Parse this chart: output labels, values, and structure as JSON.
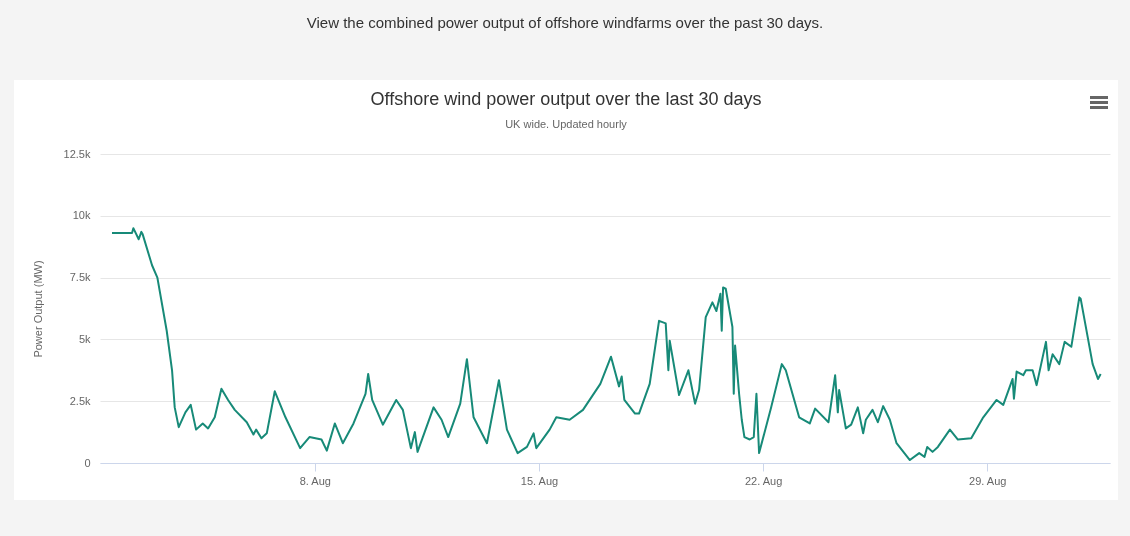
{
  "chart_data": {
    "type": "line",
    "title": "Offshore wind power output over the last 30 days",
    "subtitle": "UK wide. Updated hourly",
    "ylabel": "Power Output (MW)",
    "annotations": [
      "View the combined power output of offshore windfarms over the past 30 days."
    ],
    "x": [
      "--08-01T16:00",
      "--08-02T07:00",
      "--08-02T08:00",
      "--08-02T12:00",
      "--08-02T14:00",
      "--08-02T15:00",
      "--08-02T22:00",
      "--08-03T02:00",
      "--08-03T09:00",
      "--08-03T13:00",
      "--08-03T15:00",
      "--08-03T18:00",
      "--08-03T23:00",
      "--08-04T03:00",
      "--08-04T07:00",
      "--08-04T12:00",
      "--08-04T16:00",
      "--08-04T21:00",
      "--08-05T02:00",
      "--08-05T07:00",
      "--08-05T12:00",
      "--08-05T21:00",
      "--08-06T02:00",
      "--08-06T04:00",
      "--08-06T08:00",
      "--08-06T12:00",
      "--08-06T18:00",
      "--08-07T02:00",
      "--08-07T13:00",
      "--08-07T20:00",
      "--08-08T05:00",
      "--08-08T09:00",
      "--08-08T15:00",
      "--08-08T21:00",
      "--08-09T05:00",
      "--08-09T14:00",
      "--08-09T16:00",
      "--08-09T19:00",
      "--08-10T03:00",
      "--08-10T13:00",
      "--08-10T18:00",
      "--08-11T00:00",
      "--08-11T03:00",
      "--08-11T05:00",
      "--08-11T17:00",
      "--08-11T23:00",
      "--08-12T04:00",
      "--08-12T13:00",
      "--08-12T18:00",
      "--08-12T23:00",
      "--08-13T09:00",
      "--08-13T18:00",
      "--08-14T00:00",
      "--08-14T08:00",
      "--08-14T15:00",
      "--08-14T20:00",
      "--08-14T22:00",
      "--08-15T08:00",
      "--08-15T13:00",
      "--08-15T23:00",
      "--08-16T09:00",
      "--08-16T22:00",
      "--08-17T06:00",
      "--08-17T12:00",
      "--08-17T14:00",
      "--08-17T16:00",
      "--08-18T00:00",
      "--08-18T03:00",
      "--08-18T11:00",
      "--08-18T18:00",
      "--08-18T23:00",
      "--08-19T01:00",
      "--08-19T02:00",
      "--08-19T09:00",
      "--08-19T16:00",
      "--08-19T21:00",
      "--08-20T00:00",
      "--08-20T05:00",
      "--08-20T10:00",
      "--08-20T13:00",
      "--08-20T16:00",
      "--08-20T17:00",
      "--08-20T18:00",
      "--08-20T20:00",
      "--08-21T01:00",
      "--08-21T02:00",
      "--08-21T03:00",
      "--08-21T06:00",
      "--08-21T08:00",
      "--08-21T10:00",
      "--08-21T14:00",
      "--08-21T17:00",
      "--08-21T19:00",
      "--08-21T21:00",
      "--08-22T06:00",
      "--08-22T14:00",
      "--08-22T17:00",
      "--08-23T03:00",
      "--08-23T11:00",
      "--08-23T15:00",
      "--08-24T01:00",
      "--08-24T06:00",
      "--08-24T08:00",
      "--08-24T09:00",
      "--08-24T14:00",
      "--08-24T18:00",
      "--08-24T23:00",
      "--08-25T03:00",
      "--08-25T05:00",
      "--08-25T10:00",
      "--08-25T14:00",
      "--08-25T18:00",
      "--08-25T23:00",
      "--08-26T04:00",
      "--08-26T14:00",
      "--08-26T21:00",
      "--08-27T01:00",
      "--08-27T03:00",
      "--08-27T07:00",
      "--08-27T11:00",
      "--08-27T20:00",
      "--08-28T02:00",
      "--08-28T12:00",
      "--08-28T21:00",
      "--08-29T07:00",
      "--08-29T12:00",
      "--08-29T19:00",
      "--08-29T20:00",
      "--08-29T22:00",
      "--08-30T03:00",
      "--08-30T05:00",
      "--08-30T10:00",
      "--08-30T13:00",
      "--08-30T20:00",
      "--08-30T22:00",
      "--08-31T01:00",
      "--08-31T06:00",
      "--08-31T10:00",
      "--08-31T15:00",
      "--08-31T21:00",
      "--08-31T22:00",
      "--09-01T07:00",
      "--09-01T11:00",
      "--09-01T13:00"
    ],
    "series": [
      {
        "color": "#178a78",
        "values": [
          9300,
          9300,
          9500,
          9050,
          9350,
          9250,
          8000,
          7500,
          5350,
          3750,
          2250,
          1450,
          2050,
          2350,
          1350,
          1600,
          1400,
          1850,
          3000,
          2550,
          2150,
          1650,
          1150,
          1350,
          1000,
          1200,
          2900,
          1850,
          600,
          1050,
          950,
          500,
          1600,
          800,
          1600,
          2800,
          3600,
          2550,
          1550,
          2550,
          2150,
          600,
          1250,
          450,
          2250,
          1750,
          1050,
          2400,
          4200,
          1850,
          800,
          3350,
          1350,
          400,
          650,
          1200,
          600,
          1350,
          1850,
          1750,
          2150,
          3200,
          4300,
          3100,
          3500,
          2550,
          2000,
          2000,
          3200,
          5750,
          5650,
          3750,
          4950,
          2750,
          3750,
          2400,
          2950,
          5900,
          6500,
          6150,
          6850,
          5350,
          7100,
          7050,
          5500,
          2800,
          4750,
          2800,
          1750,
          1050,
          950,
          1050,
          2800,
          400,
          2250,
          4000,
          3750,
          1850,
          1600,
          2200,
          1650,
          3550,
          2050,
          2950,
          1400,
          1550,
          2250,
          1200,
          1750,
          2150,
          1650,
          2300,
          1750,
          800,
          120,
          400,
          250,
          650,
          450,
          650,
          1350,
          950,
          1000,
          1850,
          2550,
          2350,
          3400,
          2600,
          3700,
          3550,
          3750,
          3750,
          3150,
          4900,
          3750,
          4400,
          4000,
          4900,
          4700,
          6700,
          6650,
          4000,
          3400,
          3600
        ]
      }
    ],
    "xlim": [
      "--08-01T07:00",
      "--09-01T20:00"
    ],
    "xticks": [
      {
        "value": "--08-08",
        "label": "8. Aug"
      },
      {
        "value": "--08-15",
        "label": "15. Aug"
      },
      {
        "value": "--08-22",
        "label": "22. Aug"
      },
      {
        "value": "--08-29",
        "label": "29. Aug"
      }
    ],
    "ylim": [
      0,
      12500
    ],
    "yticks": [
      0,
      {
        "value": 2500,
        "label": "2.5k"
      },
      {
        "value": 5000,
        "label": "5k"
      },
      {
        "value": 7500,
        "label": "7.5k"
      },
      {
        "value": 10000,
        "label": "10k"
      },
      {
        "value": 12500,
        "label": "12.5k"
      }
    ],
    "grid": "y"
  }
}
